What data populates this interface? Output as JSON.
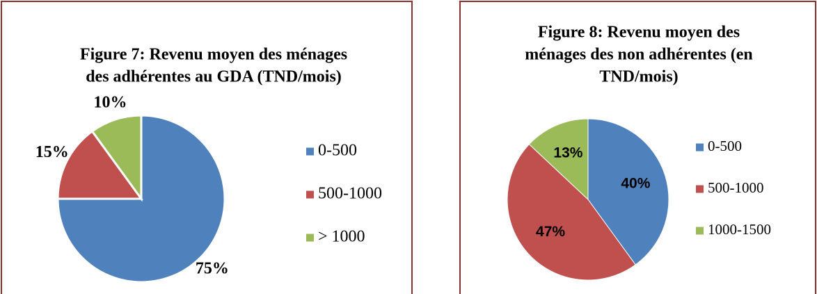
{
  "chart_data": [
    {
      "type": "pie",
      "title": [
        "Figure 7: Revenu moyen des ménages",
        "des adhérentes au GDA (TND/mois)"
      ],
      "categories": [
        "0-500",
        "500-1000",
        "> 1000"
      ],
      "values": [
        75,
        15,
        10
      ],
      "value_labels": [
        "75%",
        "15%",
        "10%"
      ],
      "colors": [
        "#4f81bd",
        "#c0504d",
        "#9bbb59"
      ],
      "legend": "right"
    },
    {
      "type": "pie",
      "title": [
        "Figure 8: Revenu moyen des",
        "ménages des non adhérentes (en",
        "TND/mois)"
      ],
      "categories": [
        "0-500",
        "500-1000",
        "1000-1500"
      ],
      "values": [
        40,
        47,
        13
      ],
      "value_labels": [
        "40%",
        "47%",
        "13%"
      ],
      "colors": [
        "#4f81bd",
        "#c0504d",
        "#9bbb59"
      ],
      "legend": "right"
    }
  ]
}
